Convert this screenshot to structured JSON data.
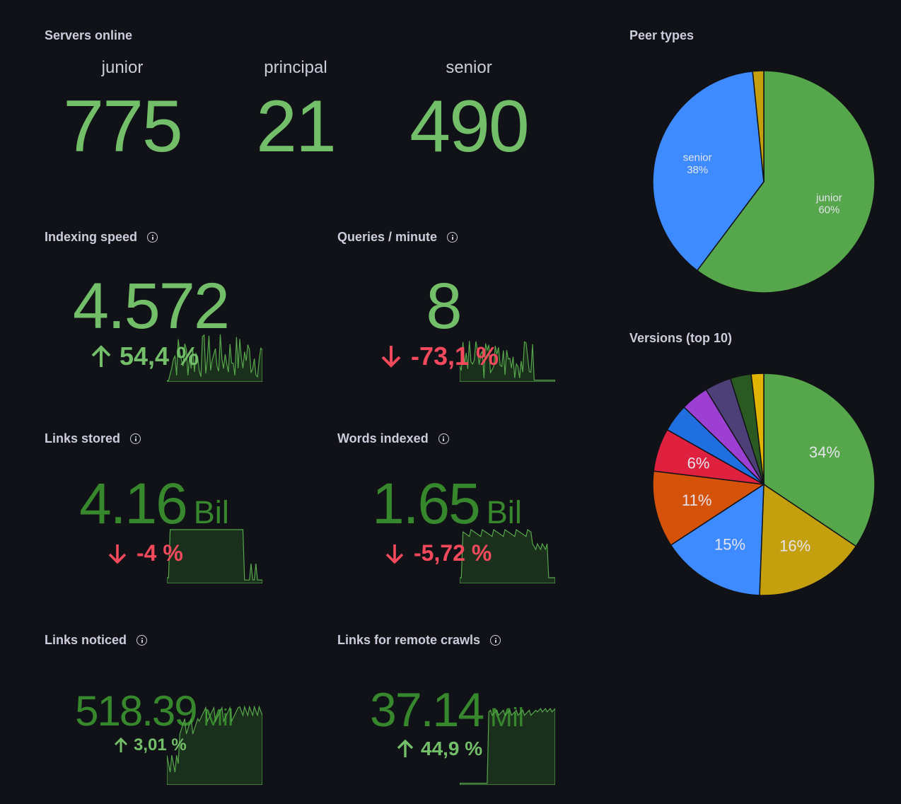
{
  "servers_online": {
    "title": "Servers online",
    "items": [
      {
        "label": "junior",
        "value": "775"
      },
      {
        "label": "principal",
        "value": "21"
      },
      {
        "label": "senior",
        "value": "490"
      }
    ]
  },
  "indexing_speed": {
    "title": "Indexing speed",
    "value": "4.572",
    "delta": "54,4 %",
    "direction": "up"
  },
  "queries_per_minute": {
    "title": "Queries / minute",
    "value": "8",
    "delta": "-73,1 %",
    "direction": "down"
  },
  "links_stored": {
    "title": "Links stored",
    "value": "4.16",
    "unit": "Bil",
    "delta": "-4 %",
    "direction": "down"
  },
  "words_indexed": {
    "title": "Words indexed",
    "value": "1.65",
    "unit": "Bil",
    "delta": "-5,72 %",
    "direction": "down"
  },
  "links_noticed": {
    "title": "Links noticed",
    "value": "518.39",
    "unit": "Mil",
    "delta": "3,01 %",
    "direction": "up"
  },
  "links_remote": {
    "title": "Links for remote crawls",
    "value": "37.14",
    "unit": "Mil",
    "delta": "44,9 %",
    "direction": "up"
  },
  "colors": {
    "value_green": "#73bf69",
    "value_dark_green": "#37872d",
    "up": "#73bf69",
    "down": "#f2495c",
    "background": "#111217"
  },
  "icons": {
    "info": "info-circle-icon",
    "up": "arrow-up-icon",
    "down": "arrow-down-icon"
  },
  "chart_data": [
    {
      "type": "pie",
      "title": "Peer types",
      "slices": [
        {
          "label": "junior",
          "percent_label": "60%",
          "value": 60,
          "color": "#56a64b"
        },
        {
          "label": "senior",
          "percent_label": "38%",
          "value": 38,
          "color": "#3d8bff"
        },
        {
          "label": "",
          "percent_label": "",
          "value": 1.6,
          "color": "#c4a00f"
        }
      ]
    },
    {
      "type": "pie",
      "title": "Versions (top 10)",
      "slices": [
        {
          "percent_label": "34%",
          "value": 34,
          "color": "#56a64b"
        },
        {
          "percent_label": "16%",
          "value": 16,
          "color": "#c4a00f"
        },
        {
          "percent_label": "15%",
          "value": 15,
          "color": "#3d8bff"
        },
        {
          "percent_label": "11%",
          "value": 11,
          "color": "#d5520a"
        },
        {
          "percent_label": "6%",
          "value": 6.2,
          "color": "#e0203f"
        },
        {
          "percent_label": "",
          "value": 4,
          "color": "#1f6fe0"
        },
        {
          "percent_label": "",
          "value": 4,
          "color": "#9e3fd4"
        },
        {
          "percent_label": "",
          "value": 3.8,
          "color": "#4d3f78"
        },
        {
          "percent_label": "",
          "value": 3,
          "color": "#2a5a22"
        },
        {
          "percent_label": "",
          "value": 1.8,
          "color": "#e0b400"
        }
      ]
    }
  ]
}
